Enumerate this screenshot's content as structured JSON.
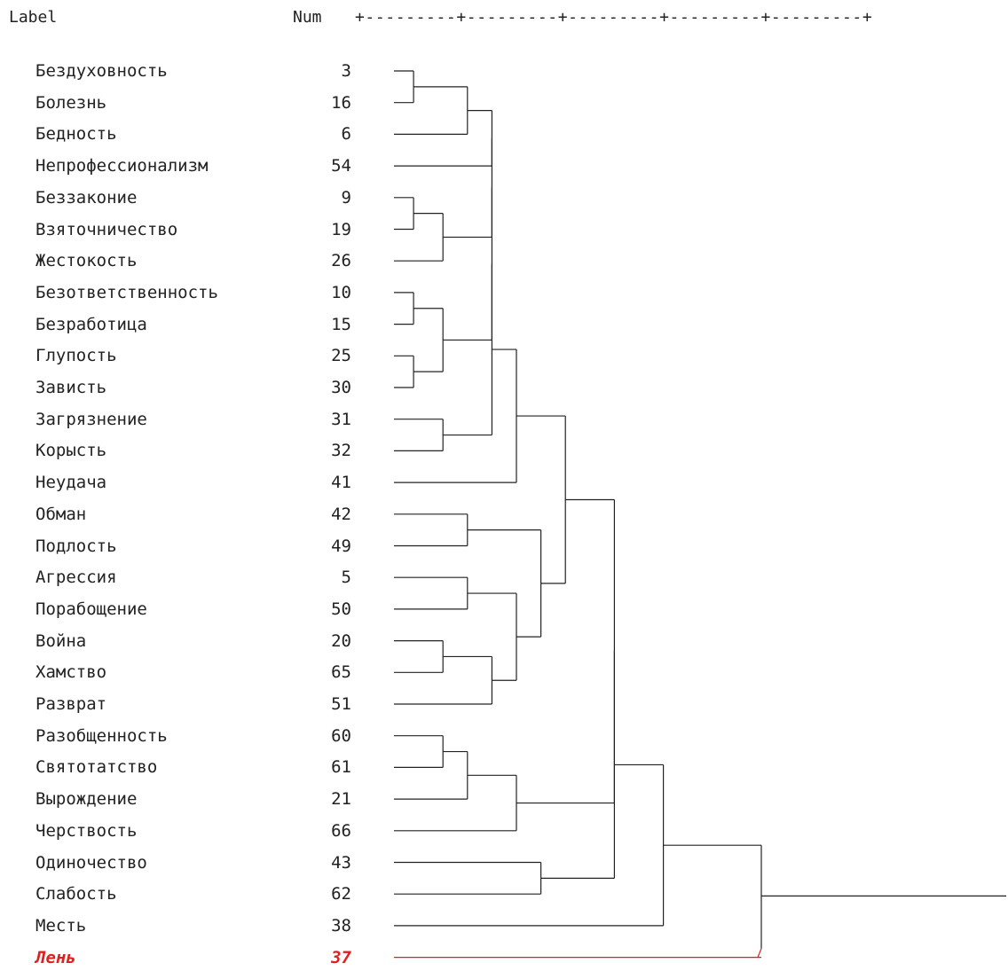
{
  "header": {
    "label": "Label",
    "num": "Num",
    "scale": "+---------+---------+---------+---------+---------+"
  },
  "rows": [
    {
      "label": "Бездуховность",
      "num": "3"
    },
    {
      "label": "Болезнь",
      "num": "16"
    },
    {
      "label": "Бедность",
      "num": "6"
    },
    {
      "label": "Непрофессионализм",
      "num": "54"
    },
    {
      "label": "Беззаконие",
      "num": "9"
    },
    {
      "label": "Взяточничество",
      "num": "19"
    },
    {
      "label": "Жестокость",
      "num": "26"
    },
    {
      "label": "Безответственность",
      "num": "10"
    },
    {
      "label": "Безработица",
      "num": "15"
    },
    {
      "label": "Глупость",
      "num": "25"
    },
    {
      "label": "Зависть",
      "num": "30"
    },
    {
      "label": "Загрязнение",
      "num": "31"
    },
    {
      "label": "Корысть",
      "num": "32"
    },
    {
      "label": "Неудача",
      "num": "41"
    },
    {
      "label": "Обман",
      "num": "42"
    },
    {
      "label": "Подлость",
      "num": "49"
    },
    {
      "label": "Агрессия",
      "num": "5"
    },
    {
      "label": "Порабощение",
      "num": "50"
    },
    {
      "label": "Война",
      "num": "20"
    },
    {
      "label": "Хамство",
      "num": "65"
    },
    {
      "label": "Разврат",
      "num": "51"
    },
    {
      "label": "Разобщенность",
      "num": "60"
    },
    {
      "label": "Святотатство",
      "num": "61"
    },
    {
      "label": "Вырождение",
      "num": "21"
    },
    {
      "label": "Черствость",
      "num": "66"
    },
    {
      "label": "Одиночество",
      "num": "43"
    },
    {
      "label": "Слабость",
      "num": "62"
    },
    {
      "label": "Месть",
      "num": "38"
    },
    {
      "label": "Лень",
      "num": "37",
      "highlight": true
    }
  ],
  "merges": [
    {
      "a": 0,
      "b": 1,
      "d": 0.4
    },
    {
      "a": 4,
      "b": 5,
      "d": 0.4
    },
    {
      "a": 7,
      "b": 8,
      "d": 0.4
    },
    {
      "a": 9,
      "b": 10,
      "d": 0.4
    },
    {
      "a": 21,
      "b": 22,
      "d": 1.0
    },
    {
      "a": 18,
      "b": 19,
      "d": 1.0
    },
    {
      "a": 11,
      "b": 12,
      "d": 1.0
    },
    {
      "a": "m0",
      "b": 2,
      "d": 1.5
    },
    {
      "a": "m1",
      "b": 6,
      "d": 1.0
    },
    {
      "a": "m2",
      "b": "m3",
      "d": 1.0
    },
    {
      "a": 14,
      "b": 15,
      "d": 1.5
    },
    {
      "a": 16,
      "b": 17,
      "d": 1.5
    },
    {
      "a": "m4",
      "b": 23,
      "d": 1.5
    },
    {
      "a": "m7",
      "b": 3,
      "d": 2.0
    },
    {
      "a": "m12",
      "b": 24,
      "d": 2.5
    },
    {
      "a": "m13",
      "b": "m8",
      "d": 2.0
    },
    {
      "a": "m15",
      "b": "m9",
      "d": 2.0
    },
    {
      "a": "m16",
      "b": "m6",
      "d": 2.0
    },
    {
      "a": "m17",
      "b": 13,
      "d": 2.5
    },
    {
      "a": "m5",
      "b": 20,
      "d": 2.0
    },
    {
      "a": "m11",
      "b": "m19",
      "d": 2.5
    },
    {
      "a": "m10",
      "b": "m20",
      "d": 3.0
    },
    {
      "a": "m18",
      "b": "m21",
      "d": 3.5
    },
    {
      "a": 25,
      "b": 26,
      "d": 3.0
    },
    {
      "a": "m22",
      "b": "m14",
      "d": 4.5
    },
    {
      "a": "m24",
      "b": "m23",
      "d": 4.5
    },
    {
      "a": "m25",
      "b": 27,
      "d": 5.5
    },
    {
      "a": "m26",
      "b": 28,
      "d": 7.5,
      "highlight": true
    }
  ],
  "scale_max": 12.5,
  "colors": {
    "line": "#222222",
    "highlight": "#e02020"
  }
}
